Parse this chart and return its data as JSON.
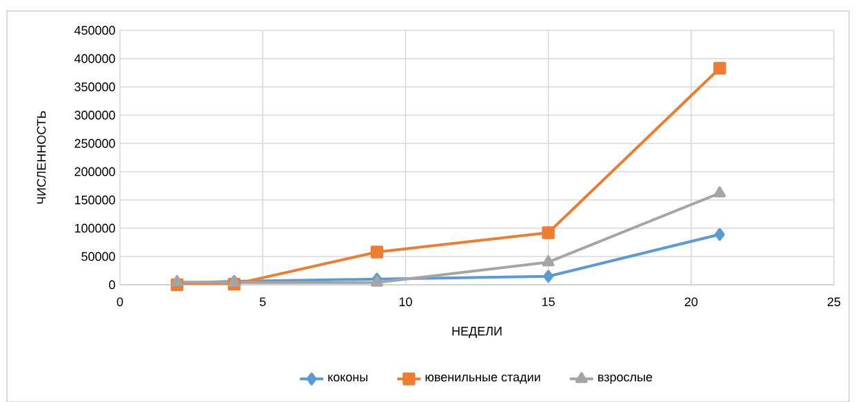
{
  "chart_data": {
    "type": "line",
    "xlabel": "НЕДЕЛИ",
    "ylabel": "ЧИСЛЕННОСТЬ",
    "xlim": [
      0,
      25
    ],
    "xticks": [
      0,
      5,
      10,
      15,
      20,
      25
    ],
    "ylim": [
      0,
      450000
    ],
    "yticks": [
      0,
      50000,
      100000,
      150000,
      200000,
      250000,
      300000,
      350000,
      400000,
      450000
    ],
    "grid": true,
    "legend": "bottom",
    "series": [
      {
        "name": "коконы",
        "color": "#5b9bd5",
        "marker": "diamond",
        "x": [
          2,
          4,
          9,
          15,
          21
        ],
        "values": [
          3000,
          6000,
          10000,
          15000,
          89000
        ]
      },
      {
        "name": "ювенильные стадии",
        "color": "#ed7d31",
        "marker": "square",
        "x": [
          2,
          4,
          9,
          15,
          21
        ],
        "values": [
          0,
          1000,
          58000,
          92000,
          383000
        ]
      },
      {
        "name": "взрослые",
        "color": "#a5a5a5",
        "marker": "triangle",
        "x": [
          2,
          4,
          9,
          15,
          21
        ],
        "values": [
          5000,
          4000,
          4000,
          40000,
          162000
        ]
      }
    ]
  }
}
